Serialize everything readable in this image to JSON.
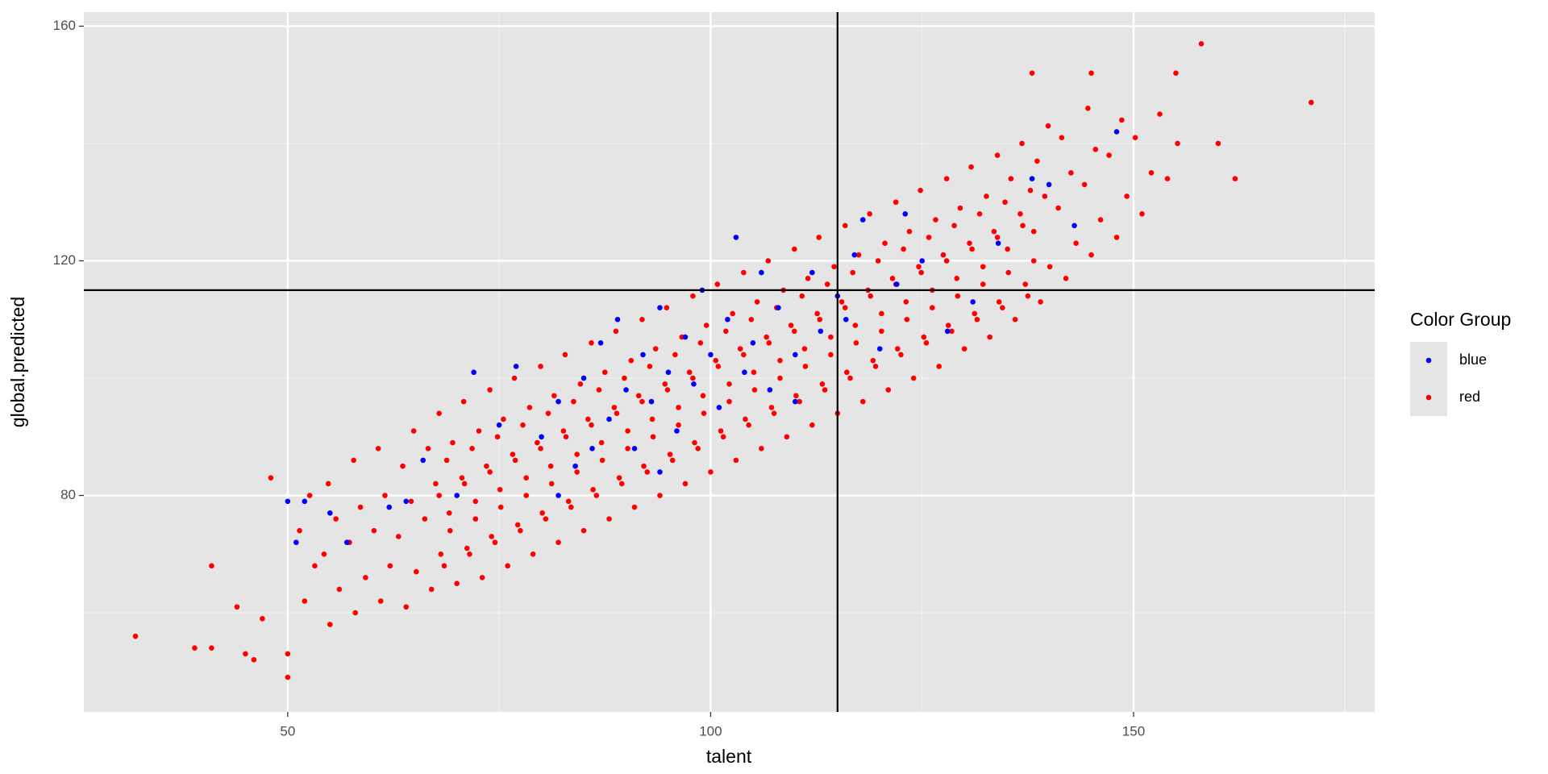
{
  "chart_data": {
    "type": "scatter",
    "x_label": "talent",
    "y_label": "global.predicted",
    "legend_title": "Color Group",
    "xlim": [
      25.9,
      178.5
    ],
    "ylim": [
      43.1,
      162.4
    ],
    "xticks": [
      50,
      100,
      150
    ],
    "yticks": [
      80,
      120,
      160
    ],
    "x_minor_grid": [
      75,
      125,
      175
    ],
    "y_minor_grid": [
      60,
      100,
      140
    ],
    "grid": true,
    "legend_position": "right",
    "vlines": [
      115
    ],
    "hlines": [
      115
    ],
    "series": [
      {
        "name": "blue",
        "color": "#0000ff",
        "x": [
          50,
          51,
          52,
          55,
          57,
          62,
          64,
          66,
          70,
          72,
          75,
          77,
          80,
          82,
          84,
          85,
          87,
          88,
          89,
          90,
          91,
          92,
          93,
          94,
          95,
          96,
          97,
          98,
          99,
          100,
          101,
          102,
          103,
          104,
          105,
          106,
          107,
          108,
          110,
          112,
          113,
          115,
          116,
          117,
          118,
          120,
          122,
          125,
          128,
          131,
          134,
          138,
          140,
          143,
          148,
          82,
          86,
          94,
          110,
          123
        ],
        "y": [
          79,
          72,
          79,
          77,
          72,
          78,
          79,
          86,
          80,
          101,
          92,
          102,
          90,
          96,
          85,
          100,
          106,
          93,
          110,
          98,
          88,
          104,
          96,
          112,
          101,
          91,
          107,
          99,
          115,
          104,
          95,
          110,
          124,
          101,
          106,
          118,
          98,
          112,
          104,
          118,
          108,
          114,
          110,
          121,
          127,
          105,
          116,
          120,
          108,
          113,
          123,
          134,
          133,
          126,
          142,
          80,
          88,
          84,
          96,
          128
        ]
      },
      {
        "name": "red",
        "color": "#ff0000",
        "x": [
          32,
          39,
          41,
          41,
          44,
          45,
          46,
          47,
          50,
          50,
          48,
          171,
          158,
          162,
          155,
          145,
          138,
          160,
          52,
          53.2,
          51.4,
          52.6,
          55,
          56.1,
          54.3,
          55.7,
          54.8,
          58,
          59.2,
          57.3,
          58.6,
          57.8,
          61,
          62.1,
          60.2,
          61.5,
          60.7,
          64,
          65.2,
          63.1,
          64.6,
          63.6,
          64.9,
          67,
          68.1,
          66.2,
          67.5,
          66.6,
          67.9,
          70,
          71.2,
          69.1,
          70.6,
          69.5,
          70.8,
          73,
          74.1,
          72.2,
          73.5,
          72.6,
          73.9,
          76,
          77.2,
          75.1,
          76.6,
          75.5,
          76.8,
          79,
          80.1,
          78.2,
          79.5,
          78.6,
          79.9,
          82,
          83.2,
          81.1,
          82.6,
          81.5,
          82.8,
          85,
          86.1,
          84.2,
          85.5,
          84.6,
          85.9,
          88,
          89.2,
          87.1,
          88.6,
          87.5,
          88.8,
          91,
          92.1,
          90.2,
          91.5,
          90.6,
          91.9,
          94,
          95.2,
          93.1,
          94.6,
          93.5,
          94.8,
          97,
          98.1,
          96.2,
          97.5,
          96.6,
          97.9,
          100,
          101.2,
          99.1,
          100.6,
          99.5,
          100.8,
          103,
          104.1,
          102.2,
          103.5,
          102.6,
          103.9,
          106,
          107.2,
          105.1,
          106.6,
          105.5,
          106.8,
          109,
          110.1,
          108.2,
          109.5,
          108.6,
          109.9,
          112,
          113.2,
          111.1,
          112.6,
          111.5,
          112.8,
          115,
          116.1,
          114.2,
          115.5,
          114.6,
          115.9,
          118,
          119.2,
          117.1,
          118.6,
          117.5,
          118.8,
          121,
          122.1,
          120.2,
          121.5,
          120.6,
          121.9,
          124,
          125.2,
          123.1,
          124.6,
          123.5,
          124.8,
          127,
          128.1,
          126.2,
          127.5,
          126.6,
          127.9,
          130,
          131.2,
          129.1,
          130.6,
          129.5,
          130.8,
          133,
          134.1,
          132.2,
          133.5,
          132.6,
          133.9,
          136,
          137.2,
          135.1,
          136.6,
          135.5,
          136.8,
          139,
          140.1,
          138.2,
          139.5,
          138.6,
          139.9,
          142,
          143.2,
          141.1,
          142.6,
          141.5,
          145,
          146.1,
          144.2,
          145.5,
          144.6,
          148,
          149.2,
          147.1,
          148.6,
          151,
          152.1,
          150.2,
          154,
          155.2,
          153.1,
          68.5,
          69.2,
          67.9,
          68.8,
          71.5,
          72.2,
          70.9,
          71.8,
          74.5,
          75.2,
          73.9,
          74.8,
          77.5,
          78.2,
          76.9,
          77.8,
          80.5,
          81.2,
          79.9,
          80.8,
          83.5,
          84.2,
          82.9,
          83.8,
          86.5,
          87.2,
          85.9,
          86.8,
          89.5,
          90.2,
          88.9,
          89.8,
          92.5,
          93.2,
          91.9,
          92.8,
          95.5,
          96.2,
          94.9,
          95.8,
          98.5,
          99.2,
          97.9,
          98.8,
          101.5,
          102.2,
          100.9,
          101.8,
          104.5,
          105.2,
          103.9,
          104.8,
          107.5,
          108.2,
          106.9,
          107.8,
          110.5,
          111.2,
          109.9,
          110.8,
          113.5,
          114.2,
          112.9,
          113.8,
          116.5,
          117.2,
          115.9,
          116.8,
          119.5,
          120.2,
          118.9,
          119.8,
          122.5,
          123.2,
          121.9,
          122.8,
          125.5,
          126.2,
          124.9,
          125.8,
          128.5,
          129.2,
          127.9,
          128.8,
          131.5,
          132.2,
          130.9,
          131.8,
          134.5,
          135.2,
          133.9,
          134.8,
          137.5,
          138.2,
          136.9,
          137.8
        ],
        "y": [
          56,
          54,
          54,
          68,
          61,
          53,
          52,
          59,
          49,
          53,
          83,
          147,
          157,
          134,
          152,
          152,
          152,
          140,
          62,
          68,
          74,
          80,
          58,
          64,
          70,
          76,
          82,
          60,
          66,
          72,
          78,
          86,
          62,
          68,
          74,
          80,
          88,
          61,
          67,
          73,
          79,
          85,
          91,
          64,
          70,
          76,
          82,
          88,
          94,
          65,
          71,
          77,
          83,
          89,
          96,
          66,
          73,
          79,
          85,
          91,
          98,
          68,
          75,
          81,
          87,
          93,
          100,
          70,
          77,
          83,
          89,
          95,
          102,
          72,
          79,
          85,
          91,
          97,
          104,
          74,
          81,
          87,
          93,
          99,
          106,
          76,
          83,
          89,
          95,
          101,
          108,
          78,
          85,
          91,
          97,
          103,
          110,
          80,
          87,
          93,
          99,
          105,
          112,
          82,
          89,
          95,
          101,
          107,
          114,
          84,
          91,
          97,
          103,
          109,
          116,
          86,
          93,
          99,
          105,
          111,
          118,
          88,
          95,
          101,
          107,
          113,
          120,
          90,
          97,
          103,
          109,
          115,
          122,
          92,
          99,
          105,
          111,
          117,
          124,
          94,
          101,
          107,
          113,
          119,
          126,
          96,
          103,
          109,
          115,
          121,
          128,
          98,
          105,
          111,
          117,
          123,
          130,
          100,
          107,
          113,
          119,
          125,
          132,
          102,
          109,
          115,
          121,
          127,
          134,
          105,
          111,
          117,
          123,
          129,
          136,
          107,
          113,
          119,
          125,
          131,
          138,
          110,
          116,
          122,
          128,
          134,
          140,
          113,
          119,
          125,
          131,
          137,
          143,
          117,
          123,
          129,
          135,
          141,
          121,
          127,
          133,
          139,
          146,
          124,
          131,
          138,
          144,
          128,
          135,
          141,
          134,
          140,
          145,
          68,
          74,
          80,
          86,
          70,
          76,
          82,
          88,
          72,
          78,
          84,
          90,
          74,
          80,
          86,
          92,
          76,
          82,
          88,
          94,
          78,
          84,
          90,
          96,
          80,
          86,
          92,
          98,
          82,
          88,
          94,
          100,
          84,
          90,
          96,
          102,
          86,
          92,
          98,
          104,
          88,
          94,
          100,
          106,
          90,
          96,
          102,
          108,
          92,
          98,
          104,
          110,
          94,
          100,
          106,
          112,
          96,
          102,
          108,
          114,
          98,
          104,
          110,
          116,
          100,
          106,
          112,
          118,
          102,
          108,
          114,
          120,
          104,
          110,
          116,
          122,
          106,
          112,
          118,
          124,
          108,
          114,
          120,
          126,
          110,
          116,
          122,
          128,
          112,
          118,
          124,
          130,
          114,
          120,
          126,
          132
        ]
      }
    ]
  }
}
